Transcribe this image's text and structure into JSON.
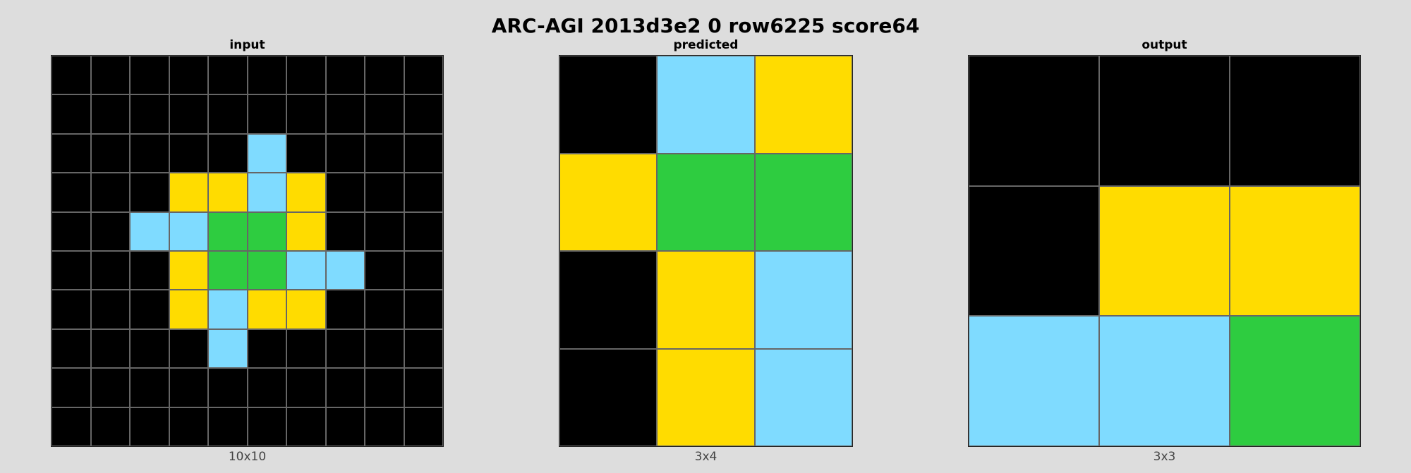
{
  "title": "ARC-AGI 2013d3e2 0 row6225 score64",
  "palette": {
    "0": "#000000",
    "3": "#2ECC40",
    "4": "#FFDC00",
    "8": "#7FDBFF"
  },
  "panels": [
    {
      "label": "input",
      "dims": "10x10",
      "grid": [
        [
          0,
          0,
          0,
          0,
          0,
          0,
          0,
          0,
          0,
          0
        ],
        [
          0,
          0,
          0,
          0,
          0,
          0,
          0,
          0,
          0,
          0
        ],
        [
          0,
          0,
          0,
          0,
          0,
          8,
          0,
          0,
          0,
          0
        ],
        [
          0,
          0,
          0,
          4,
          4,
          8,
          4,
          0,
          0,
          0
        ],
        [
          0,
          0,
          8,
          8,
          3,
          3,
          4,
          0,
          0,
          0
        ],
        [
          0,
          0,
          0,
          4,
          3,
          3,
          8,
          8,
          0,
          0
        ],
        [
          0,
          0,
          0,
          4,
          8,
          4,
          4,
          0,
          0,
          0
        ],
        [
          0,
          0,
          0,
          0,
          8,
          0,
          0,
          0,
          0,
          0
        ],
        [
          0,
          0,
          0,
          0,
          0,
          0,
          0,
          0,
          0,
          0
        ],
        [
          0,
          0,
          0,
          0,
          0,
          0,
          0,
          0,
          0,
          0
        ]
      ]
    },
    {
      "label": "predicted",
      "dims": "3x4",
      "grid": [
        [
          0,
          8,
          4
        ],
        [
          4,
          3,
          3
        ],
        [
          0,
          4,
          8
        ],
        [
          0,
          4,
          8
        ]
      ]
    },
    {
      "label": "output",
      "dims": "3x3",
      "grid": [
        [
          0,
          0,
          0
        ],
        [
          0,
          4,
          4
        ],
        [
          8,
          8,
          3
        ]
      ]
    }
  ]
}
